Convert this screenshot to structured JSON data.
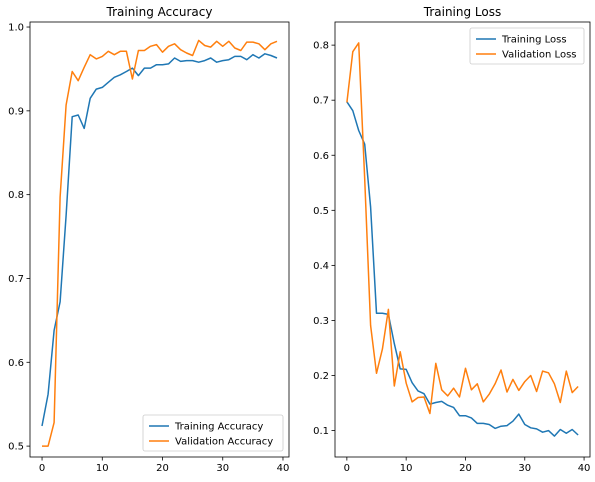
{
  "chart_data": [
    {
      "type": "line",
      "title": "Training Accuracy",
      "xlabel": "",
      "ylabel": "",
      "xlim": [
        -2,
        41
      ],
      "ylim": [
        0.487,
        1.006
      ],
      "xticks": [
        0,
        10,
        20,
        30,
        40
      ],
      "yticks": [
        0.5,
        0.6,
        0.7,
        0.8,
        0.9,
        1.0
      ],
      "xtick_labels": [
        "0",
        "10",
        "20",
        "30",
        "40"
      ],
      "ytick_labels": [
        "0.5",
        "0.6",
        "0.7",
        "0.8",
        "0.9",
        "1.0"
      ],
      "grid": false,
      "legend_position": "lower right",
      "x": [
        0,
        1,
        2,
        3,
        4,
        5,
        6,
        7,
        8,
        9,
        10,
        11,
        12,
        13,
        14,
        15,
        16,
        17,
        18,
        19,
        20,
        21,
        22,
        23,
        24,
        25,
        26,
        27,
        28,
        29,
        30,
        31,
        32,
        33,
        34,
        35,
        36,
        37,
        38,
        39
      ],
      "series": [
        {
          "name": "Training Accuracy",
          "color": "#1f77b4",
          "values": [
            0.524,
            0.562,
            0.638,
            0.672,
            0.775,
            0.893,
            0.895,
            0.879,
            0.915,
            0.926,
            0.928,
            0.934,
            0.94,
            0.943,
            0.947,
            0.951,
            0.942,
            0.951,
            0.951,
            0.955,
            0.955,
            0.956,
            0.963,
            0.959,
            0.96,
            0.96,
            0.958,
            0.96,
            0.963,
            0.958,
            0.96,
            0.961,
            0.965,
            0.965,
            0.961,
            0.967,
            0.963,
            0.968,
            0.966,
            0.963
          ]
        },
        {
          "name": "Validation Accuracy",
          "color": "#ff7f0e",
          "values": [
            0.5,
            0.5,
            0.528,
            0.797,
            0.907,
            0.947,
            0.936,
            0.952,
            0.967,
            0.962,
            0.965,
            0.971,
            0.967,
            0.971,
            0.971,
            0.938,
            0.972,
            0.972,
            0.977,
            0.979,
            0.97,
            0.977,
            0.98,
            0.973,
            0.969,
            0.966,
            0.984,
            0.978,
            0.976,
            0.983,
            0.977,
            0.983,
            0.975,
            0.972,
            0.982,
            0.982,
            0.98,
            0.973,
            0.98,
            0.983
          ]
        }
      ]
    },
    {
      "type": "line",
      "title": "Training Loss",
      "xlabel": "",
      "ylabel": "",
      "xlim": [
        -2,
        41
      ],
      "ylim": [
        0.052,
        0.842
      ],
      "xticks": [
        0,
        10,
        20,
        30,
        40
      ],
      "yticks": [
        0.1,
        0.2,
        0.3,
        0.4,
        0.5,
        0.6,
        0.7,
        0.8
      ],
      "xtick_labels": [
        "0",
        "10",
        "20",
        "30",
        "40"
      ],
      "ytick_labels": [
        "0.1",
        "0.2",
        "0.3",
        "0.4",
        "0.5",
        "0.6",
        "0.7",
        "0.8"
      ],
      "grid": false,
      "legend_position": "upper right",
      "x": [
        0,
        1,
        2,
        3,
        4,
        5,
        6,
        7,
        8,
        9,
        10,
        11,
        12,
        13,
        14,
        15,
        16,
        17,
        18,
        19,
        20,
        21,
        22,
        23,
        24,
        25,
        26,
        27,
        28,
        29,
        30,
        31,
        32,
        33,
        34,
        35,
        36,
        37,
        38,
        39
      ],
      "series": [
        {
          "name": "Training Loss",
          "color": "#1f77b4",
          "values": [
            0.697,
            0.681,
            0.645,
            0.62,
            0.506,
            0.313,
            0.313,
            0.311,
            0.258,
            0.212,
            0.211,
            0.187,
            0.172,
            0.167,
            0.148,
            0.151,
            0.153,
            0.146,
            0.142,
            0.127,
            0.127,
            0.123,
            0.113,
            0.113,
            0.111,
            0.104,
            0.108,
            0.109,
            0.117,
            0.13,
            0.111,
            0.105,
            0.103,
            0.097,
            0.1,
            0.09,
            0.102,
            0.095,
            0.102,
            0.092
          ]
        },
        {
          "name": "Validation Loss",
          "color": "#ff7f0e",
          "values": [
            0.696,
            0.788,
            0.804,
            0.557,
            0.291,
            0.204,
            0.248,
            0.32,
            0.181,
            0.243,
            0.186,
            0.152,
            0.16,
            0.161,
            0.131,
            0.222,
            0.174,
            0.163,
            0.177,
            0.161,
            0.213,
            0.174,
            0.185,
            0.152,
            0.166,
            0.185,
            0.21,
            0.17,
            0.193,
            0.173,
            0.189,
            0.2,
            0.171,
            0.208,
            0.205,
            0.185,
            0.151,
            0.208,
            0.169,
            0.18
          ]
        }
      ]
    }
  ]
}
